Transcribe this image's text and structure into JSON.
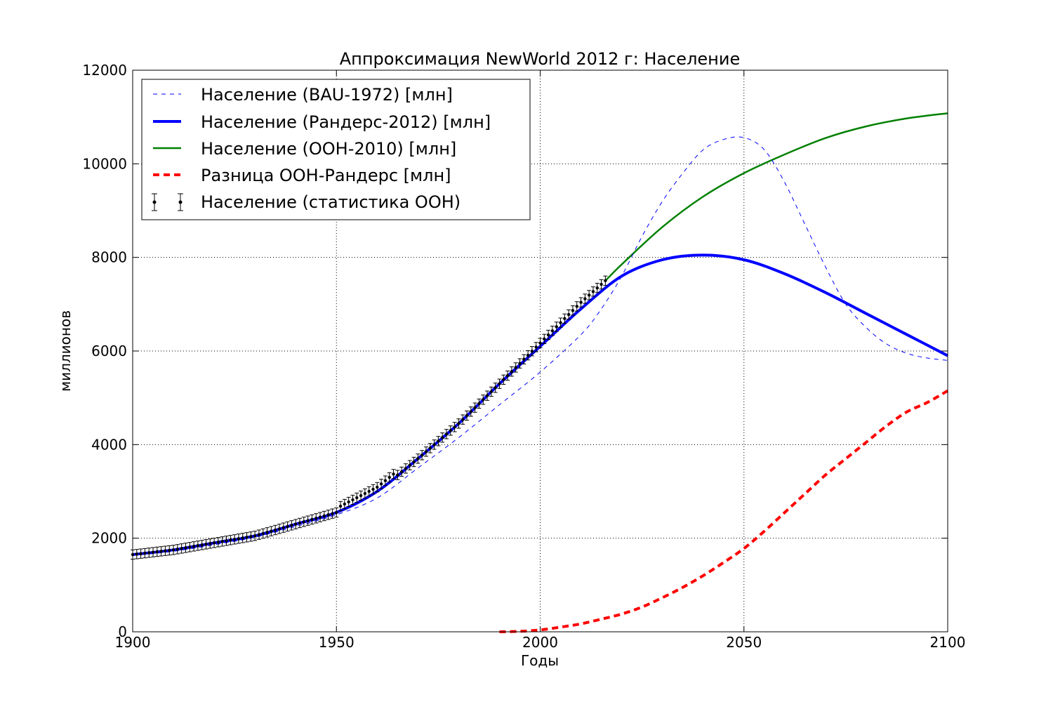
{
  "chart_data": {
    "type": "line",
    "title": "Аппроксимация NewWorld 2012 г: Население",
    "xlabel": "Годы",
    "ylabel": "миллионов",
    "xlim": [
      1900,
      2100
    ],
    "ylim": [
      0,
      12000
    ],
    "x_ticks": [
      1900,
      1950,
      2000,
      2050,
      2100
    ],
    "y_ticks": [
      0,
      2000,
      4000,
      6000,
      8000,
      10000,
      12000
    ],
    "grid": true,
    "legend_position": "top-left",
    "series": [
      {
        "name": "Население (BAU-1972) [млн]",
        "color": "#0000ff",
        "style": "dashed-thin",
        "x": [
          1900,
          1910,
          1920,
          1930,
          1940,
          1950,
          1960,
          1970,
          1980,
          1990,
          2000,
          2010,
          2015,
          2020,
          2025,
          2030,
          2035,
          2040,
          2045,
          2050,
          2055,
          2060,
          2065,
          2070,
          2075,
          2080,
          2085,
          2090,
          2095,
          2100
        ],
        "y": [
          1630,
          1720,
          1860,
          2020,
          2250,
          2500,
          2860,
          3500,
          4150,
          4850,
          5550,
          6350,
          6900,
          7600,
          8450,
          9200,
          9800,
          10300,
          10520,
          10560,
          10300,
          9600,
          8700,
          7800,
          7000,
          6500,
          6150,
          5950,
          5850,
          5800
        ]
      },
      {
        "name": "Население (Рандерс-2012) [млн]",
        "color": "#0000ff",
        "style": "solid-thick",
        "x": [
          1900,
          1910,
          1920,
          1930,
          1940,
          1950,
          1960,
          1970,
          1980,
          1990,
          2000,
          2010,
          2020,
          2030,
          2040,
          2050,
          2060,
          2070,
          2080,
          2090,
          2100
        ],
        "y": [
          1650,
          1750,
          1900,
          2050,
          2300,
          2550,
          3000,
          3700,
          4450,
          5300,
          6100,
          6900,
          7600,
          7950,
          8050,
          7950,
          7650,
          7250,
          6800,
          6350,
          5900
        ]
      },
      {
        "name": "Население (ООН-2010) [млн]",
        "color": "#008000",
        "style": "solid",
        "x": [
          2016,
          2020,
          2030,
          2040,
          2050,
          2060,
          2070,
          2080,
          2090,
          2100
        ],
        "y": [
          7500,
          7850,
          8650,
          9300,
          9800,
          10200,
          10550,
          10800,
          10970,
          11080
        ]
      },
      {
        "name": "Разница ООН-Рандерс [млн]",
        "color": "#ff0000",
        "style": "dashed-thick",
        "x": [
          1990,
          1995,
          2000,
          2005,
          2010,
          2015,
          2020,
          2025,
          2030,
          2035,
          2040,
          2045,
          2050,
          2055,
          2060,
          2065,
          2070,
          2075,
          2080,
          2085,
          2090,
          2095,
          2100
        ],
        "y": [
          0,
          10,
          40,
          100,
          170,
          270,
          380,
          530,
          730,
          950,
          1200,
          1480,
          1780,
          2150,
          2550,
          2950,
          3350,
          3700,
          4050,
          4400,
          4700,
          4900,
          5150
        ]
      }
    ],
    "errorbar_series": {
      "name": "Население (статистика ООН)",
      "color": "#000000",
      "error": 100,
      "x_start": 1900,
      "x_end": 2016,
      "step": 1
    }
  }
}
